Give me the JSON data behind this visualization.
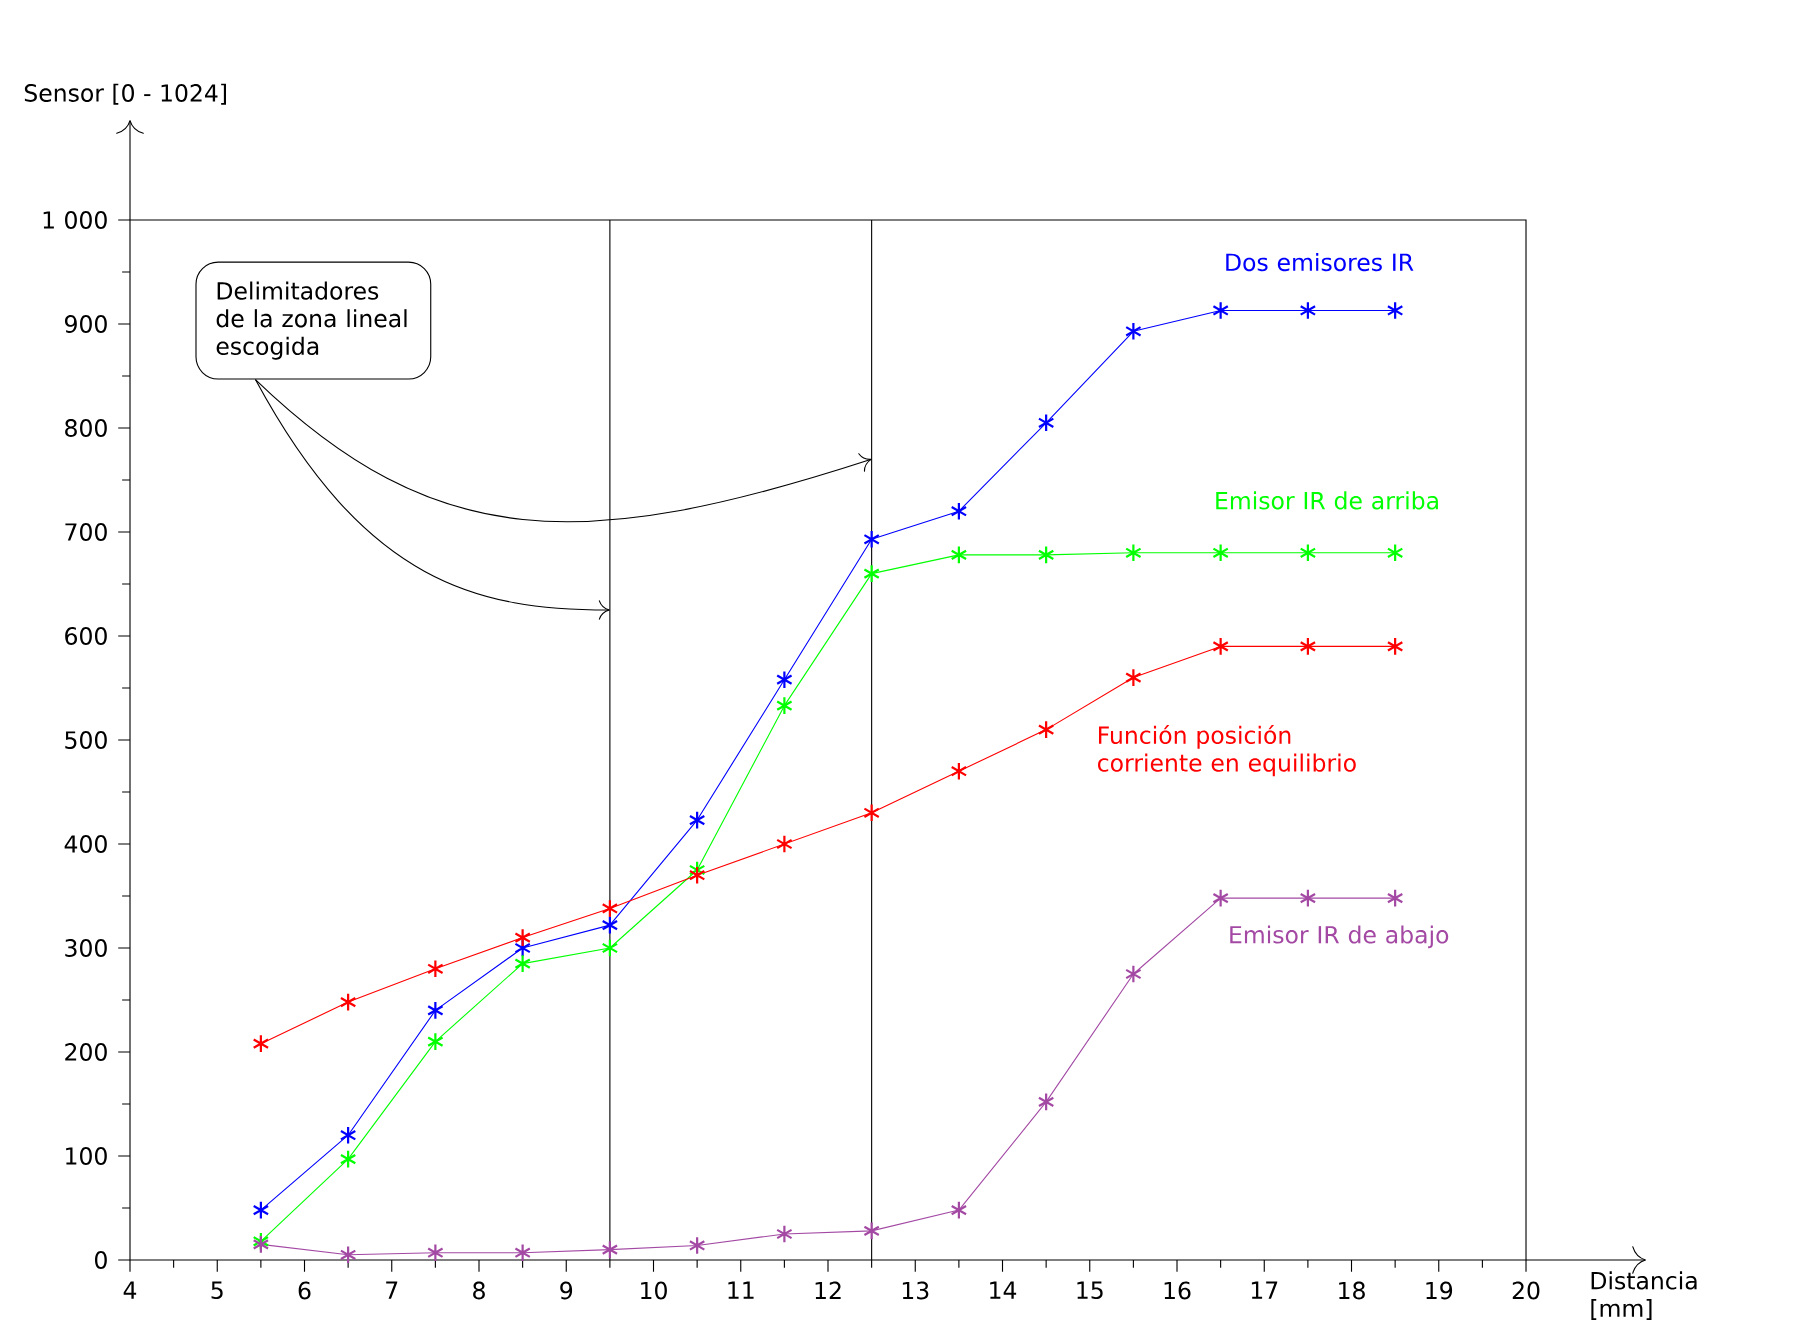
{
  "chart_data": {
    "type": "line",
    "xlabel": "Distancia [mm]",
    "ylabel": "Sensor [0 - 1024]",
    "x": [
      5.5,
      6.5,
      7.5,
      8.5,
      9.5,
      10.5,
      11.5,
      12.5,
      13.5,
      14.5,
      15.5,
      16.5,
      17.5,
      18.5
    ],
    "series": [
      {
        "name": "Dos emisores IR",
        "color": "#0000ff",
        "values": [
          48,
          120,
          240,
          300,
          322,
          423,
          558,
          693,
          720,
          805,
          893,
          913,
          913,
          913
        ]
      },
      {
        "name": "Emisor IR de arriba",
        "color": "#00ff00",
        "values": [
          18,
          97,
          210,
          285,
          300,
          375,
          533,
          660,
          678,
          678,
          680,
          680,
          680,
          680
        ]
      },
      {
        "name": "Función posición corriente en equilibrio",
        "color": "#ff0000",
        "values": [
          208,
          248,
          280,
          310,
          338,
          370,
          400,
          430,
          470,
          510,
          560,
          590,
          590,
          590
        ]
      },
      {
        "name": "Emisor IR de abajo",
        "color": "#a349a4",
        "values": [
          15,
          5,
          7,
          7,
          10,
          14,
          25,
          28,
          48,
          152,
          275,
          348,
          348,
          348
        ]
      }
    ],
    "xlim": [
      4,
      20
    ],
    "ylim": [
      0,
      1000
    ],
    "xticks": [
      4,
      5,
      6,
      7,
      8,
      9,
      10,
      11,
      12,
      13,
      14,
      15,
      16,
      17,
      18,
      19,
      20
    ],
    "yticks": [
      0,
      100,
      200,
      300,
      400,
      500,
      600,
      700,
      800,
      900,
      {
        "value": 1000,
        "label": "1 000"
      }
    ],
    "ref_lines": [
      {
        "axis": "x",
        "value": 9.5,
        "color": "#000000"
      },
      {
        "axis": "x",
        "value": 12.5,
        "color": "#000000"
      }
    ],
    "annotations": [
      {
        "text": "Delimitadores de la zona lineal escogida",
        "x": 9.5,
        "y": 625
      }
    ],
    "marker": "cross",
    "line_style": "solid",
    "grid": false
  }
}
